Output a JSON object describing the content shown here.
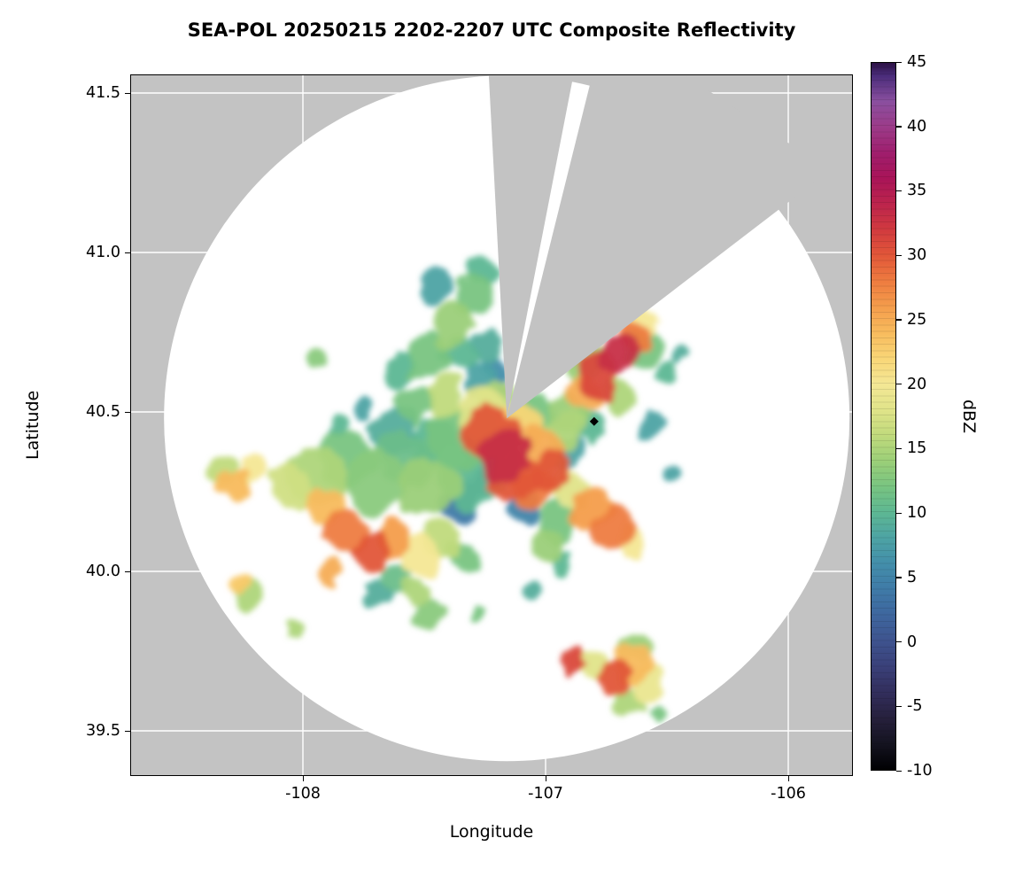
{
  "chart_data": {
    "type": "heatmap",
    "title": "SEA-POL 20250215 2202-2207 UTC Composite Reflectivity",
    "xlabel": "Longitude",
    "ylabel": "Latitude",
    "x_ticks": [
      -108,
      -107,
      -106
    ],
    "x_tick_labels": [
      "-108",
      "-107",
      "-106"
    ],
    "y_ticks": [
      39.5,
      40.0,
      40.5,
      41.0,
      41.5
    ],
    "y_tick_labels": [
      "39.5",
      "40.0",
      "40.5",
      "41.0",
      "41.5"
    ],
    "xlim": [
      -108.71,
      -105.74
    ],
    "ylim": [
      39.36,
      41.56
    ],
    "grid": true,
    "panel_color": "#c3c3c3",
    "coverage_color": "#ffffff",
    "grid_color": "#ffffff",
    "colorbar": {
      "label": "dBZ",
      "min": -10,
      "max": 45,
      "ticks": [
        -10,
        -5,
        0,
        5,
        10,
        15,
        20,
        25,
        30,
        35,
        40,
        45
      ],
      "tick_labels": [
        "-10",
        "-5",
        "0",
        "5",
        "10",
        "15",
        "20",
        "25",
        "30",
        "35",
        "40",
        "45"
      ],
      "stops": [
        [
          -10,
          "#000002"
        ],
        [
          -8,
          "#141320"
        ],
        [
          -6,
          "#26203c"
        ],
        [
          -4,
          "#322e5c"
        ],
        [
          -2,
          "#3a4079"
        ],
        [
          0,
          "#3e538e"
        ],
        [
          2,
          "#3e669e"
        ],
        [
          4,
          "#3f7aa7"
        ],
        [
          6,
          "#438eaa"
        ],
        [
          8,
          "#4da3a4"
        ],
        [
          10,
          "#5db793"
        ],
        [
          12,
          "#78c481"
        ],
        [
          14,
          "#9bcf78"
        ],
        [
          16,
          "#c0da7c"
        ],
        [
          18,
          "#e0e489"
        ],
        [
          20,
          "#f4e795"
        ],
        [
          22,
          "#f9d677"
        ],
        [
          24,
          "#f8bb5d"
        ],
        [
          26,
          "#f49d4c"
        ],
        [
          28,
          "#ee7c40"
        ],
        [
          30,
          "#e25739"
        ],
        [
          32,
          "#d13a3f"
        ],
        [
          34,
          "#bc244c"
        ],
        [
          36,
          "#a91458"
        ],
        [
          38,
          "#9f1e6d"
        ],
        [
          40,
          "#9c3b89"
        ],
        [
          42,
          "#8a4f9f"
        ],
        [
          44,
          "#4a2c7a"
        ],
        [
          45,
          "#2c1245"
        ]
      ]
    },
    "radar": {
      "center_lon": -107.16,
      "center_lat": 40.48,
      "range_deg_lat": 1.075,
      "blocked_sectors_azimuth_deg": [
        [
          -3,
          11
        ],
        [
          14,
          52.5
        ]
      ]
    },
    "site_marker": {
      "lon": -106.8,
      "lat": 40.47,
      "symbol": "diamond",
      "color": "#000000"
    },
    "echoes_lon_lat_dbz_radiusdeg": [
      [
        -107.35,
        40.42,
        12,
        0.1
      ],
      [
        -107.3,
        40.3,
        10,
        0.11
      ],
      [
        -107.25,
        40.5,
        18,
        0.08
      ],
      [
        -107.22,
        40.43,
        30,
        0.09
      ],
      [
        -107.18,
        40.36,
        33,
        0.08
      ],
      [
        -107.12,
        40.3,
        30,
        0.08
      ],
      [
        -107.05,
        40.26,
        28,
        0.07
      ],
      [
        -106.97,
        40.31,
        30,
        0.07
      ],
      [
        -107.02,
        40.38,
        25,
        0.07
      ],
      [
        -107.1,
        40.45,
        22,
        0.07
      ],
      [
        -107.2,
        40.55,
        15,
        0.06
      ],
      [
        -107.05,
        40.5,
        12,
        0.06
      ],
      [
        -106.93,
        40.44,
        15,
        0.06
      ],
      [
        -107.25,
        40.28,
        5,
        0.05
      ],
      [
        -107.35,
        40.22,
        4,
        0.06
      ],
      [
        -107.08,
        40.2,
        5,
        0.05
      ],
      [
        -106.9,
        40.37,
        8,
        0.05
      ],
      [
        -107.2,
        40.57,
        3,
        0.04
      ],
      [
        -107.28,
        40.6,
        8,
        0.05
      ],
      [
        -106.92,
        40.5,
        14,
        0.06
      ],
      [
        -106.85,
        40.56,
        25,
        0.06
      ],
      [
        -106.78,
        40.62,
        31,
        0.07
      ],
      [
        -106.7,
        40.68,
        33,
        0.06
      ],
      [
        -106.64,
        40.74,
        28,
        0.05
      ],
      [
        -106.59,
        40.79,
        20,
        0.05
      ],
      [
        -106.85,
        40.65,
        14,
        0.07
      ],
      [
        -106.6,
        40.7,
        12,
        0.06
      ],
      [
        -106.82,
        40.45,
        10,
        0.05
      ],
      [
        -106.7,
        40.55,
        15,
        0.05
      ],
      [
        -106.82,
        40.2,
        26,
        0.07
      ],
      [
        -106.72,
        40.13,
        28,
        0.06
      ],
      [
        -106.9,
        40.26,
        18,
        0.06
      ],
      [
        -106.65,
        40.08,
        20,
        0.05
      ],
      [
        -106.95,
        40.15,
        12,
        0.06
      ],
      [
        -107.95,
        40.3,
        15,
        0.09
      ],
      [
        -108.05,
        40.26,
        17,
        0.07
      ],
      [
        -107.82,
        40.35,
        12,
        0.09
      ],
      [
        -107.7,
        40.28,
        13,
        0.1
      ],
      [
        -107.58,
        40.35,
        11,
        0.09
      ],
      [
        -107.48,
        40.26,
        14,
        0.09
      ],
      [
        -107.45,
        40.4,
        10,
        0.08
      ],
      [
        -107.62,
        40.44,
        9,
        0.07
      ],
      [
        -107.92,
        40.2,
        24,
        0.06
      ],
      [
        -107.82,
        40.12,
        28,
        0.07
      ],
      [
        -107.72,
        40.06,
        30,
        0.06
      ],
      [
        -107.62,
        40.11,
        26,
        0.06
      ],
      [
        -107.52,
        40.05,
        20,
        0.06
      ],
      [
        -107.43,
        40.1,
        16,
        0.06
      ],
      [
        -107.35,
        40.05,
        12,
        0.05
      ],
      [
        -108.28,
        40.27,
        24,
        0.05
      ],
      [
        -108.2,
        40.32,
        20,
        0.05
      ],
      [
        -108.33,
        40.32,
        16,
        0.04
      ],
      [
        -107.42,
        40.55,
        16,
        0.06
      ],
      [
        -107.55,
        40.52,
        12,
        0.06
      ],
      [
        -107.48,
        40.68,
        12,
        0.07
      ],
      [
        -107.38,
        40.78,
        14,
        0.07
      ],
      [
        -107.3,
        40.87,
        12,
        0.06
      ],
      [
        -107.26,
        40.95,
        10,
        0.05
      ],
      [
        -107.6,
        40.63,
        10,
        0.05
      ],
      [
        -107.95,
        40.66,
        13,
        0.04
      ],
      [
        -107.35,
        40.68,
        10,
        0.06
      ],
      [
        -107.45,
        40.9,
        8,
        0.05
      ],
      [
        -107.23,
        40.7,
        9,
        0.05
      ],
      [
        -107.22,
        40.63,
        6,
        0.04
      ],
      [
        -108.26,
        39.96,
        23,
        0.035
      ],
      [
        -108.22,
        39.93,
        15,
        0.05
      ],
      [
        -107.88,
        39.99,
        25,
        0.04
      ],
      [
        -108.04,
        39.81,
        15,
        0.03
      ],
      [
        -107.55,
        39.93,
        15,
        0.05
      ],
      [
        -107.47,
        39.87,
        13,
        0.05
      ],
      [
        -107.62,
        39.98,
        11,
        0.05
      ],
      [
        -107.7,
        39.93,
        9,
        0.04
      ],
      [
        -107.28,
        39.86,
        12,
        0.03
      ],
      [
        -107.0,
        40.08,
        14,
        0.05
      ],
      [
        -106.93,
        40.03,
        10,
        0.04
      ],
      [
        -106.88,
        39.72,
        31,
        0.04
      ],
      [
        -106.8,
        39.7,
        18,
        0.05
      ],
      [
        -106.72,
        39.67,
        30,
        0.05
      ],
      [
        -106.64,
        39.71,
        24,
        0.06
      ],
      [
        -106.58,
        39.65,
        19,
        0.05
      ],
      [
        -106.66,
        39.59,
        15,
        0.05
      ],
      [
        -106.62,
        39.76,
        14,
        0.05
      ],
      [
        -107.85,
        40.45,
        10,
        0.03
      ],
      [
        -107.75,
        40.5,
        8,
        0.03
      ],
      [
        -106.5,
        40.3,
        8,
        0.03
      ],
      [
        -106.45,
        40.68,
        9,
        0.03
      ],
      [
        -107.05,
        39.93,
        9,
        0.03
      ],
      [
        -106.55,
        39.55,
        12,
        0.03
      ],
      [
        -106.55,
        40.45,
        8,
        0.04
      ],
      [
        -106.5,
        40.62,
        10,
        0.04
      ]
    ]
  }
}
